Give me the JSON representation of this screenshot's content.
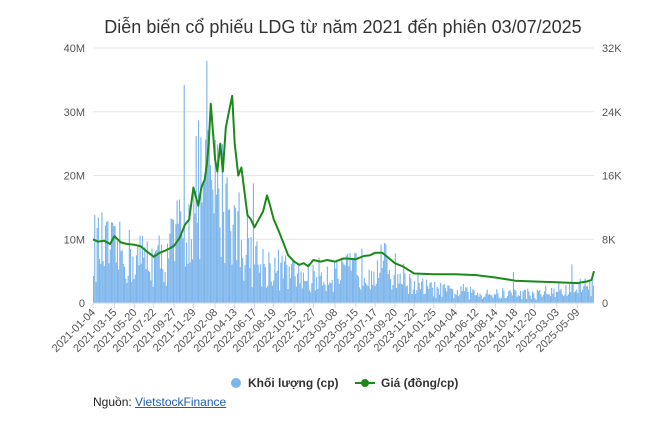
{
  "source": {
    "label": "Nguồn:",
    "link_text": "VietstockFinance"
  },
  "chart_data": {
    "type": "bar+line",
    "title": "Diễn biến cổ phiếu LDG từ năm 2021 đến phiên 03/07/2025",
    "x_tick_labels": [
      "2021-01-04",
      "2021-03-15",
      "2021-05-20",
      "2021-07-22",
      "2021-09-27",
      "2021-11-29",
      "2022-02-08",
      "2022-04-13",
      "2022-06-17",
      "2022-08-19",
      "2022-10-25",
      "2022-12-27",
      "2023-03-08",
      "2023-05-15",
      "2023-07-17",
      "2023-09-20",
      "2023-11-22",
      "2024-01-25",
      "2024-04-04",
      "2024-06-12",
      "2024-08-14",
      "2024-10-18",
      "2024-12-20",
      "2025-03-03",
      "2025-05-09"
    ],
    "y_left": {
      "ticks": [
        "0",
        "10M",
        "20M",
        "30M",
        "40M"
      ],
      "range": [
        0,
        40000000
      ]
    },
    "y_right": {
      "ticks": [
        "0",
        "8K",
        "16K",
        "24K",
        "32K"
      ],
      "range": [
        0,
        32000
      ]
    },
    "legend": {
      "position": "bottom"
    },
    "series": [
      {
        "name": "Khối lượng (cp)",
        "type": "bar",
        "color": "#7cb5ec",
        "axis": "left",
        "monthly_avg_values": [
          9000000,
          8500000,
          8000000,
          7500000,
          7000000,
          7200000,
          6800000,
          7000000,
          9000000,
          11000000,
          14000000,
          18000000,
          19000000,
          17000000,
          15000000,
          12000000,
          9000000,
          7000000,
          6000000,
          5500000,
          5000000,
          4500000,
          4200000,
          4000000,
          4500000,
          4800000,
          4500000,
          5000000,
          5500000,
          6000000,
          6500000,
          6000000,
          5000000,
          4000000,
          3000000,
          2500000,
          2200000,
          2000000,
          1800000,
          1700000,
          1600000,
          1500000,
          1500000,
          1400000,
          1500000,
          1600000,
          1500000,
          1400000,
          1500000,
          1600000,
          1800000,
          2200000,
          2600000,
          3000000
        ]
      },
      {
        "name": "Giá (đồng/cp)",
        "type": "line",
        "color": "#1b8a1b",
        "axis": "right",
        "x_dates": [
          "2021-01-04",
          "2021-01-20",
          "2021-02-10",
          "2021-03-01",
          "2021-03-15",
          "2021-04-05",
          "2021-04-25",
          "2021-05-20",
          "2021-06-10",
          "2021-06-25",
          "2021-07-22",
          "2021-08-10",
          "2021-08-30",
          "2021-09-15",
          "2021-09-27",
          "2021-10-15",
          "2021-11-01",
          "2021-11-15",
          "2021-11-29",
          "2021-12-15",
          "2021-12-25",
          "2022-01-05",
          "2022-01-12",
          "2022-01-18",
          "2022-01-25",
          "2022-02-08",
          "2022-02-15",
          "2022-02-25",
          "2022-03-05",
          "2022-03-15",
          "2022-03-25",
          "2022-04-05",
          "2022-04-13",
          "2022-04-25",
          "2022-05-05",
          "2022-05-15",
          "2022-05-25",
          "2022-06-05",
          "2022-06-17",
          "2022-07-01",
          "2022-07-15",
          "2022-07-28",
          "2022-08-05",
          "2022-08-19",
          "2022-09-05",
          "2022-09-20",
          "2022-10-05",
          "2022-10-25",
          "2022-11-10",
          "2022-11-25",
          "2022-12-10",
          "2022-12-27",
          "2023-01-20",
          "2023-02-10",
          "2023-03-08",
          "2023-04-05",
          "2023-05-15",
          "2023-06-10",
          "2023-07-01",
          "2023-07-17",
          "2023-08-10",
          "2023-09-01",
          "2023-09-20",
          "2023-10-15",
          "2023-11-22",
          "2024-01-25",
          "2024-04-04",
          "2024-06-12",
          "2024-08-14",
          "2024-10-18",
          "2024-12-20",
          "2025-03-03",
          "2025-05-09",
          "2025-06-10",
          "2025-06-25",
          "2025-07-03"
        ],
        "values": [
          8000,
          7700,
          7800,
          7400,
          8400,
          7600,
          7400,
          7300,
          7100,
          6600,
          5800,
          6300,
          6600,
          6900,
          7200,
          8200,
          9800,
          10500,
          14500,
          12200,
          14500,
          15500,
          17500,
          20000,
          25000,
          18000,
          16500,
          20000,
          16500,
          22000,
          24000,
          26000,
          20000,
          16000,
          17000,
          14000,
          11000,
          10500,
          9500,
          10500,
          11500,
          13500,
          12500,
          10500,
          9000,
          7500,
          6000,
          5200,
          4800,
          5000,
          4600,
          5400,
          5200,
          5400,
          5200,
          5600,
          5500,
          5900,
          6000,
          6300,
          6300,
          5600,
          5000,
          4600,
          3700,
          3600,
          3600,
          3500,
          3200,
          2800,
          2700,
          2600,
          2500,
          2700,
          2900,
          4000
        ]
      }
    ]
  }
}
